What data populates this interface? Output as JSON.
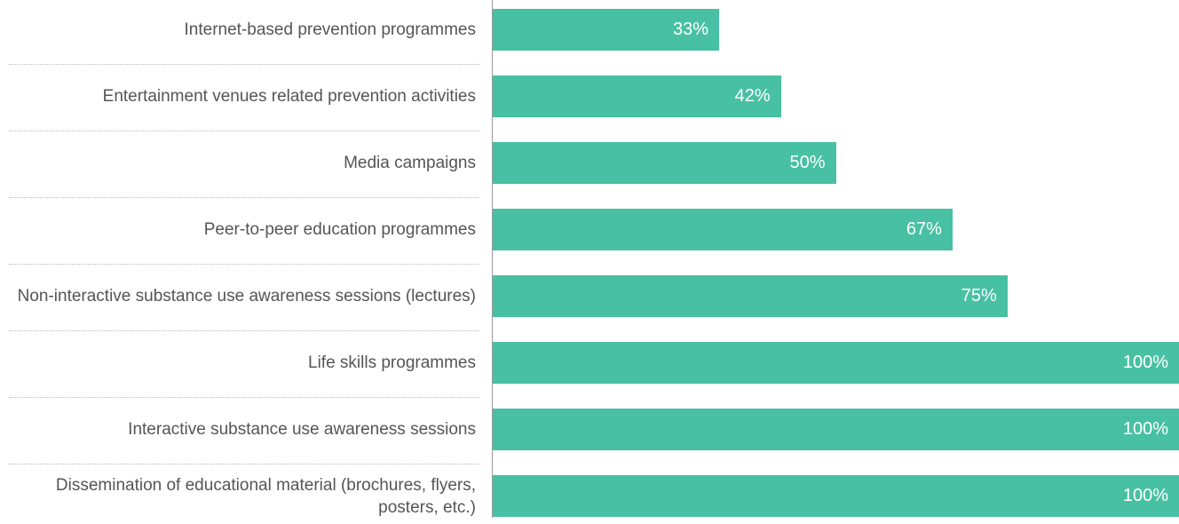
{
  "chart_data": {
    "type": "bar",
    "orientation": "horizontal",
    "categories": [
      "Internet-based prevention programmes",
      "Entertainment venues related prevention activities",
      "Media campaigns",
      "Peer-to-peer education programmes",
      "Non-interactive substance use awareness sessions (lectures)",
      "Life skills programmes",
      "Interactive substance use awareness sessions",
      "Dissemination of educational material (brochures, flyers, posters, etc.)"
    ],
    "values": [
      33,
      42,
      50,
      67,
      75,
      100,
      100,
      100
    ],
    "value_labels": [
      "33%",
      "42%",
      "50%",
      "67%",
      "75%",
      "100%",
      "100%",
      "100%"
    ],
    "color": "#48c0a3"
  }
}
